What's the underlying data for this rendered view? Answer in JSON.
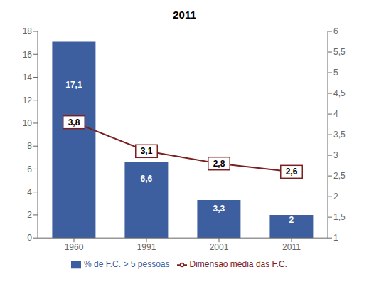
{
  "chart_data": {
    "type": "bar",
    "title": "2011",
    "categories": [
      "1960",
      "1991",
      "2001",
      "2011"
    ],
    "series": [
      {
        "name": "% de F.C. > 5 pessoas",
        "type": "bar",
        "color": "#3D5F9F",
        "values": [
          17.1,
          6.6,
          3.3,
          2.0
        ],
        "value_labels": [
          "17,1",
          "6,6",
          "3,3",
          "2"
        ]
      },
      {
        "name": "Dimensão média das F.C.",
        "type": "line",
        "color": "#7B2020",
        "axis": "y2",
        "values": [
          3.8,
          3.1,
          2.8,
          2.6
        ],
        "value_labels": [
          "3,8",
          "3,1",
          "2,8",
          "2,6"
        ]
      }
    ],
    "ylim": [
      0,
      18
    ],
    "yticks": [
      0,
      2,
      4,
      6,
      8,
      10,
      12,
      14,
      16,
      18
    ],
    "y2lim": [
      1,
      6
    ],
    "y2ticks": [
      1,
      {
        "value": 1.5,
        "label": "1,5"
      },
      2,
      {
        "value": 2.5,
        "label": "2,5"
      },
      3,
      {
        "value": 3.5,
        "label": "3,5"
      },
      4,
      {
        "value": 4.5,
        "label": "4,5"
      },
      5,
      {
        "value": 5.5,
        "label": "5,5"
      },
      6
    ],
    "data_labels": true,
    "legend": "bottom",
    "grid": false
  }
}
